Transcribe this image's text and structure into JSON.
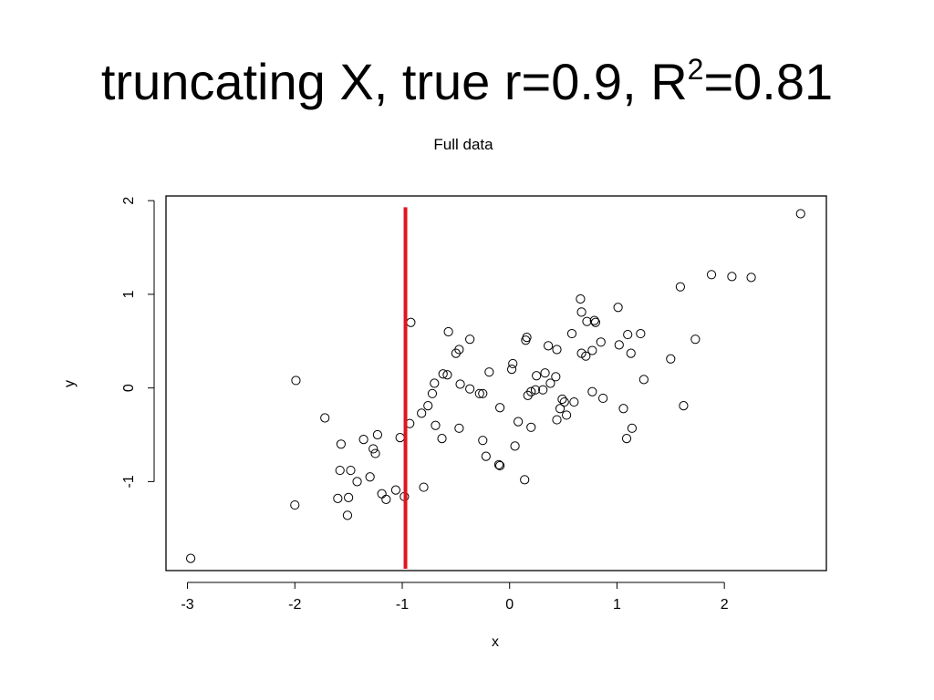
{
  "slide": {
    "title_prefix": "truncating X, true r=0.9, R",
    "title_sup": "2",
    "title_suffix": "=0.81"
  },
  "chart_data": {
    "type": "scatter",
    "title": "Full data",
    "xlabel": "x",
    "ylabel": "y",
    "xlim": [
      -3.2,
      2.95
    ],
    "ylim": [
      -1.95,
      2.05
    ],
    "xticks": [
      -3,
      -2,
      -1,
      0,
      1,
      2
    ],
    "yticks": [
      -1,
      0,
      1,
      2
    ],
    "xtick_labels": [
      "-3",
      "-2",
      "-1",
      "0",
      "1",
      "2"
    ],
    "ytick_labels": [
      "-1",
      "0",
      "1",
      "2"
    ],
    "grid": false,
    "cutoff_line": {
      "x": -0.97,
      "y_range": [
        -1.93,
        1.93
      ],
      "color": "#e0141e"
    },
    "points": [
      [
        -2.97,
        -1.82
      ],
      [
        -2.0,
        -1.25
      ],
      [
        -1.99,
        0.08
      ],
      [
        -1.72,
        -0.32
      ],
      [
        -1.6,
        -1.18
      ],
      [
        -1.58,
        -0.88
      ],
      [
        -1.57,
        -0.6
      ],
      [
        -1.51,
        -1.36
      ],
      [
        -1.5,
        -1.17
      ],
      [
        -1.48,
        -0.88
      ],
      [
        -1.42,
        -1.0
      ],
      [
        -1.36,
        -0.55
      ],
      [
        -1.3,
        -0.95
      ],
      [
        -1.27,
        -0.65
      ],
      [
        -1.25,
        -0.7
      ],
      [
        -1.23,
        -0.5
      ],
      [
        -1.19,
        -1.13
      ],
      [
        -1.15,
        -1.19
      ],
      [
        -1.06,
        -1.09
      ],
      [
        -1.02,
        -0.53
      ],
      [
        -0.98,
        -1.16
      ],
      [
        -0.93,
        -0.38
      ],
      [
        -0.92,
        0.7
      ],
      [
        -0.82,
        -0.27
      ],
      [
        -0.8,
        -1.06
      ],
      [
        -0.76,
        -0.19
      ],
      [
        -0.72,
        -0.06
      ],
      [
        -0.7,
        0.05
      ],
      [
        -0.69,
        -0.4
      ],
      [
        -0.63,
        -0.54
      ],
      [
        -0.62,
        0.15
      ],
      [
        -0.58,
        0.14
      ],
      [
        -0.57,
        0.6
      ],
      [
        -0.5,
        0.37
      ],
      [
        -0.47,
        0.41
      ],
      [
        -0.47,
        -0.43
      ],
      [
        -0.46,
        0.04
      ],
      [
        -0.37,
        -0.01
      ],
      [
        -0.37,
        0.52
      ],
      [
        -0.28,
        -0.06
      ],
      [
        -0.25,
        -0.06
      ],
      [
        -0.25,
        -0.56
      ],
      [
        -0.22,
        -0.73
      ],
      [
        -0.19,
        0.17
      ],
      [
        -0.1,
        -0.82
      ],
      [
        -0.09,
        -0.83
      ],
      [
        -0.09,
        -0.21
      ],
      [
        0.02,
        0.2
      ],
      [
        0.03,
        0.26
      ],
      [
        0.05,
        -0.62
      ],
      [
        0.08,
        -0.36
      ],
      [
        0.14,
        -0.98
      ],
      [
        0.15,
        0.51
      ],
      [
        0.16,
        0.54
      ],
      [
        0.17,
        -0.08
      ],
      [
        0.2,
        -0.04
      ],
      [
        0.2,
        -0.42
      ],
      [
        0.24,
        -0.02
      ],
      [
        0.25,
        0.13
      ],
      [
        0.31,
        -0.02
      ],
      [
        0.33,
        0.16
      ],
      [
        0.36,
        0.45
      ],
      [
        0.38,
        0.05
      ],
      [
        0.43,
        0.12
      ],
      [
        0.44,
        0.41
      ],
      [
        0.44,
        -0.34
      ],
      [
        0.47,
        -0.22
      ],
      [
        0.49,
        -0.12
      ],
      [
        0.51,
        -0.15
      ],
      [
        0.53,
        -0.29
      ],
      [
        0.58,
        0.58
      ],
      [
        0.6,
        -0.15
      ],
      [
        0.66,
        0.95
      ],
      [
        0.67,
        0.37
      ],
      [
        0.67,
        0.81
      ],
      [
        0.71,
        0.34
      ],
      [
        0.72,
        0.71
      ],
      [
        0.77,
        0.4
      ],
      [
        0.77,
        -0.04
      ],
      [
        0.79,
        0.72
      ],
      [
        0.8,
        0.7
      ],
      [
        0.85,
        0.49
      ],
      [
        0.87,
        -0.11
      ],
      [
        1.01,
        0.86
      ],
      [
        1.02,
        0.46
      ],
      [
        1.06,
        -0.22
      ],
      [
        1.09,
        -0.54
      ],
      [
        1.1,
        0.57
      ],
      [
        1.13,
        0.37
      ],
      [
        1.14,
        -0.43
      ],
      [
        1.22,
        0.58
      ],
      [
        1.25,
        0.09
      ],
      [
        1.5,
        0.31
      ],
      [
        1.59,
        1.08
      ],
      [
        1.62,
        -0.19
      ],
      [
        1.73,
        0.52
      ],
      [
        1.88,
        1.21
      ],
      [
        2.07,
        1.19
      ],
      [
        2.25,
        1.18
      ],
      [
        2.71,
        1.86
      ]
    ]
  }
}
